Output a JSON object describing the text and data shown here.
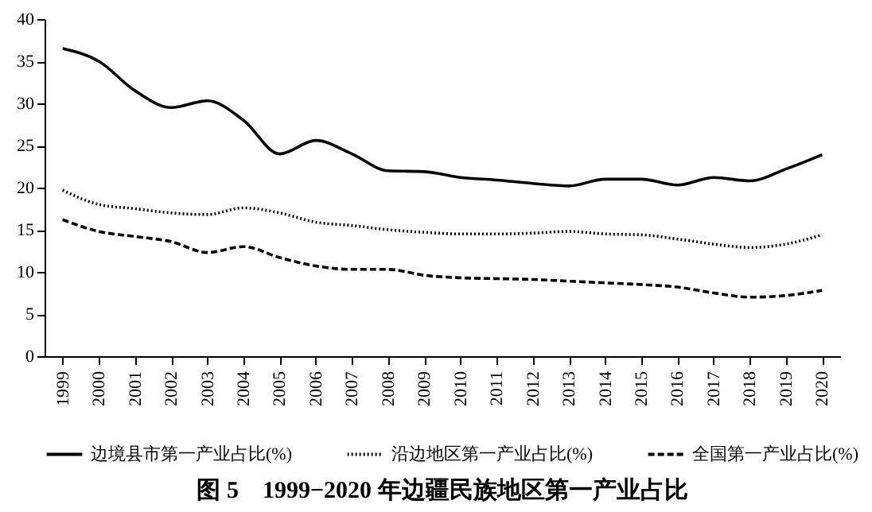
{
  "chart_data": {
    "type": "line",
    "title": "图 5　1999−2020 年边疆民族地区第一产业占比",
    "categories": [
      "1999",
      "2000",
      "2001",
      "2002",
      "2003",
      "2004",
      "2005",
      "2006",
      "2007",
      "2008",
      "2009",
      "2010",
      "2011",
      "2012",
      "2013",
      "2014",
      "2015",
      "2016",
      "2017",
      "2018",
      "2019",
      "2020"
    ],
    "series": [
      {
        "name": "边境县市第一产业占比(%)",
        "color": "#000000",
        "line_style": "solid",
        "values": [
          36.5,
          35,
          31.5,
          29.5,
          30.3,
          28,
          24,
          25.6,
          24,
          22,
          21.9,
          21.2,
          20.9,
          20.5,
          20.2,
          21,
          21,
          20.3,
          21.2,
          20.8,
          22.2,
          23.9
        ]
      },
      {
        "name": "沿边地区第一产业占比(%)",
        "color": "#000000",
        "line_style": "dotted",
        "values": [
          19.7,
          18,
          17.5,
          17,
          16.8,
          17.6,
          17,
          15.9,
          15.5,
          15,
          14.7,
          14.5,
          14.5,
          14.6,
          14.8,
          14.5,
          14.4,
          13.9,
          13.3,
          12.9,
          13.3,
          14.4
        ]
      },
      {
        "name": "全国第一产业占比(%)",
        "color": "#000000",
        "line_style": "dashed",
        "values": [
          16.2,
          14.8,
          14.2,
          13.6,
          12.3,
          13,
          11.7,
          10.7,
          10.3,
          10.3,
          9.6,
          9.3,
          9.2,
          9.1,
          8.9,
          8.7,
          8.5,
          8.2,
          7.5,
          7.0,
          7.2,
          7.8
        ]
      }
    ],
    "ylim": [
      0,
      40
    ],
    "yticks": [
      0,
      5,
      10,
      15,
      20,
      25,
      30,
      35,
      40
    ],
    "grid": false,
    "legend": "bottom",
    "marker": "none"
  }
}
